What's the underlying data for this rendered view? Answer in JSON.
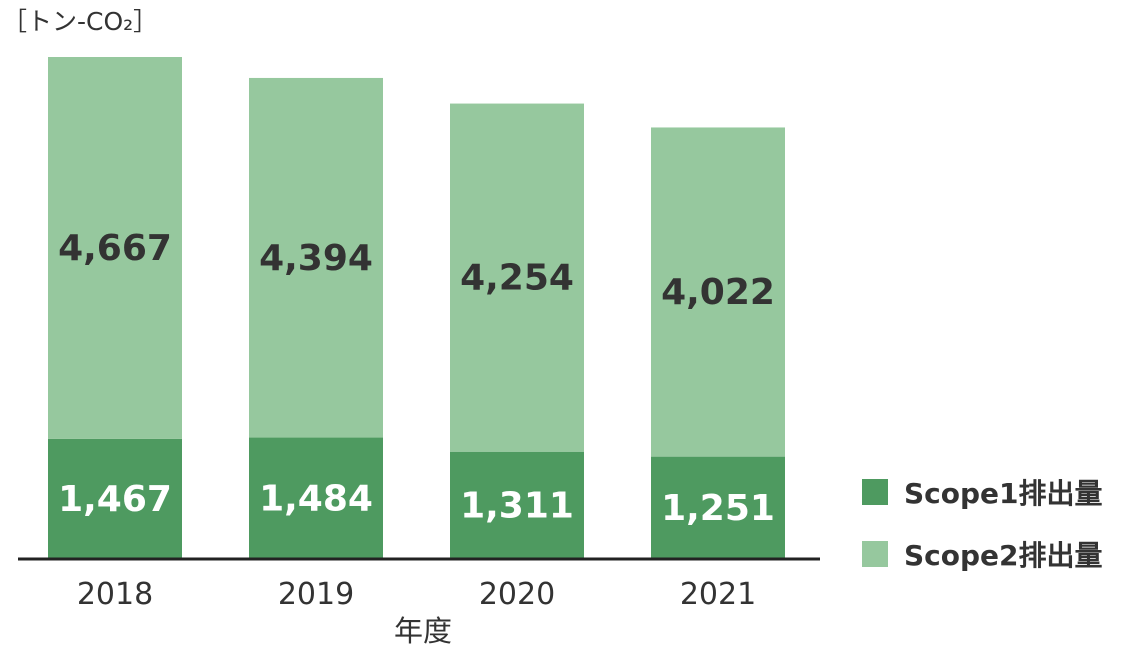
{
  "unit_label": "［トン-CO₂］",
  "colors": {
    "scope1": "#4e9a60",
    "scope2": "#96c89e",
    "axis": "#222222",
    "text_dark": "#333333",
    "text_light": "#ffffff"
  },
  "chart_data": {
    "type": "bar",
    "stacked": true,
    "categories": [
      "2018",
      "2019",
      "2020",
      "2021"
    ],
    "series": [
      {
        "name": "Scope1排出量",
        "values": [
          1467,
          1484,
          1311,
          1251
        ],
        "labels": [
          "1,467",
          "1,484",
          "1,311",
          "1,251"
        ]
      },
      {
        "name": "Scope2排出量",
        "values": [
          4667,
          4394,
          4254,
          4022
        ],
        "labels": [
          "4,667",
          "4,394",
          "4,254",
          "4,022"
        ]
      }
    ],
    "xlabel": "年度",
    "ylabel": "［トン-CO₂］",
    "ylim": [
      0,
      6134
    ],
    "grid": false,
    "legend_position": "right-bottom"
  }
}
